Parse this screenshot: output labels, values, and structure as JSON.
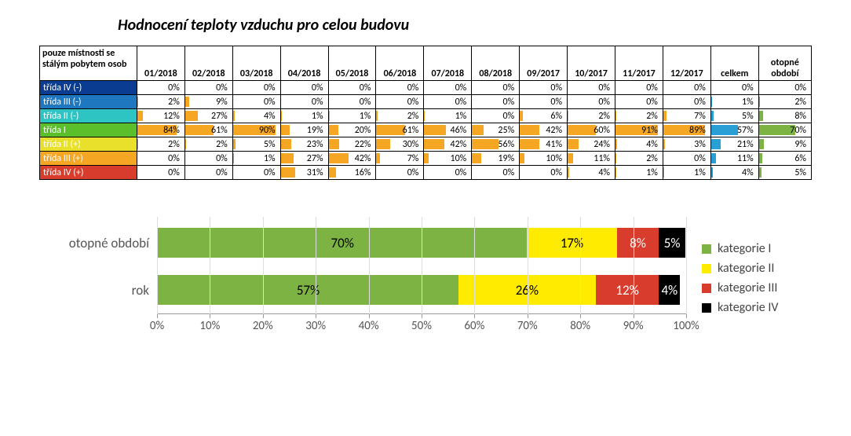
{
  "title": "Hodnocení teploty vzduchu pro celou budovu",
  "table": {
    "header_rowhead": "pouze místnosti se stálým pobytem osob",
    "columns": [
      "01/2018",
      "02/2018",
      "03/2018",
      "04/2018",
      "05/2018",
      "06/2018",
      "07/2018",
      "08/2018",
      "09/2017",
      "10/2017",
      "11/2017",
      "12/2017",
      "celkem",
      "otopné období"
    ],
    "column_bar_colors": [
      "#f5a623",
      "#f5a623",
      "#f5a623",
      "#f5a623",
      "#f5a623",
      "#f5a623",
      "#f5a623",
      "#f5a623",
      "#f5a623",
      "#f5a623",
      "#f5a623",
      "#f5a623",
      "#2a9fd6",
      "#7cb342"
    ],
    "rows": [
      {
        "label": "třída IV (-)",
        "bg": "#0a3d91",
        "values": [
          0,
          0,
          0,
          0,
          0,
          0,
          0,
          0,
          0,
          0,
          0,
          0,
          0,
          0
        ]
      },
      {
        "label": "třída III (-)",
        "bg": "#1f77c0",
        "values": [
          2,
          9,
          0,
          0,
          0,
          0,
          0,
          0,
          0,
          0,
          0,
          0,
          1,
          2
        ]
      },
      {
        "label": "třída II (-)",
        "bg": "#2ec4c4",
        "values": [
          12,
          27,
          4,
          1,
          1,
          2,
          1,
          0,
          6,
          2,
          2,
          7,
          5,
          8
        ]
      },
      {
        "label": "třída I",
        "bg": "#5abf2a",
        "values": [
          84,
          61,
          90,
          19,
          20,
          61,
          46,
          25,
          42,
          60,
          91,
          89,
          57,
          70
        ]
      },
      {
        "label": "třída II (+)",
        "bg": "#e8e02a",
        "values": [
          2,
          2,
          5,
          23,
          22,
          30,
          42,
          56,
          41,
          24,
          4,
          3,
          21,
          9
        ]
      },
      {
        "label": "třída III (+)",
        "bg": "#f5a623",
        "values": [
          0,
          0,
          1,
          27,
          42,
          7,
          10,
          19,
          10,
          11,
          2,
          0,
          11,
          6
        ]
      },
      {
        "label": "třída IV (+)",
        "bg": "#d73c2c",
        "values": [
          0,
          0,
          0,
          31,
          16,
          0,
          0,
          0,
          0,
          4,
          1,
          1,
          4,
          5
        ]
      }
    ],
    "max_value_scale": 100
  },
  "chart": {
    "type": "stacked-bar-horizontal",
    "categories": [
      {
        "label": "otopné období",
        "segments": [
          {
            "value": 70,
            "color": "#7cb342",
            "text": "#000"
          },
          {
            "value": 17,
            "color": "#ffeb00",
            "text": "#000"
          },
          {
            "value": 8,
            "color": "#d73c2c",
            "text": "#fff"
          },
          {
            "value": 5,
            "color": "#000000",
            "text": "#fff"
          }
        ]
      },
      {
        "label": "rok",
        "segments": [
          {
            "value": 57,
            "color": "#7cb342",
            "text": "#000"
          },
          {
            "value": 26,
            "color": "#ffeb00",
            "text": "#000"
          },
          {
            "value": 12,
            "color": "#d73c2c",
            "text": "#fff"
          },
          {
            "value": 4,
            "color": "#000000",
            "text": "#fff"
          }
        ]
      }
    ],
    "xlim": [
      0,
      100
    ],
    "xtick_step": 10,
    "tick_suffix": "%",
    "legend": [
      {
        "label": "kategorie I",
        "color": "#7cb342"
      },
      {
        "label": "kategorie II",
        "color": "#ffeb00"
      },
      {
        "label": "kategorie III",
        "color": "#d73c2c"
      },
      {
        "label": "kategorie IV",
        "color": "#000000"
      }
    ]
  }
}
